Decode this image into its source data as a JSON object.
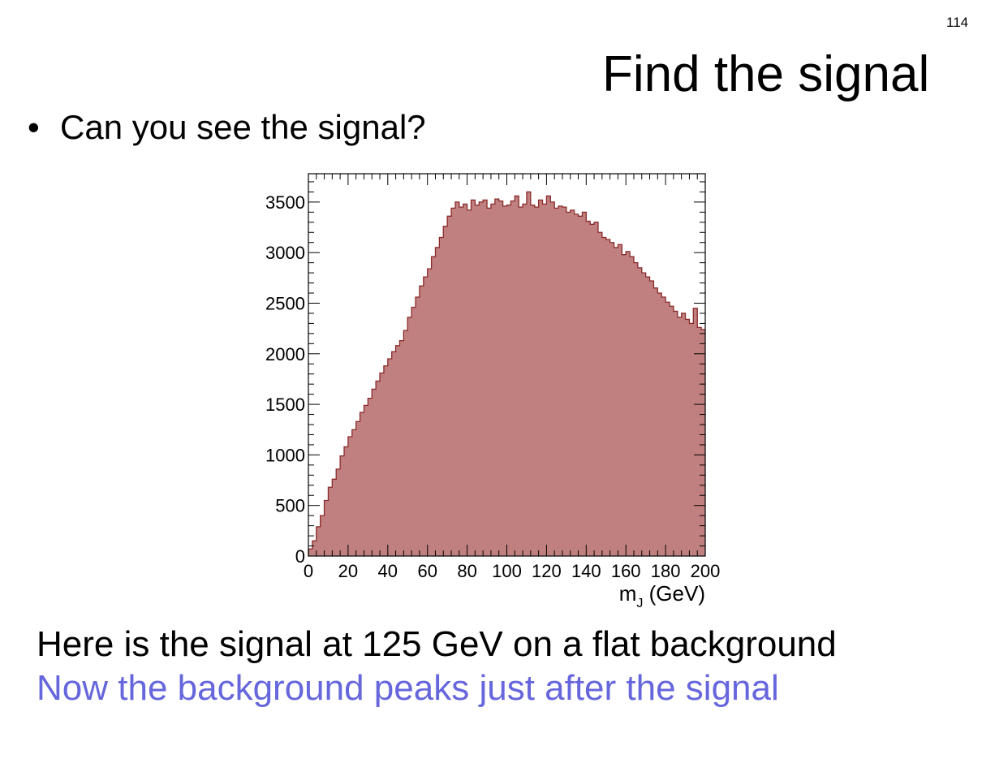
{
  "slide": {
    "number": "114",
    "title": "Find the signal",
    "bullet": "Can you see the signal?",
    "bullet_symbol": "•",
    "caption_1": "Here is the signal at 125 GeV on a flat background",
    "caption_2": "Now the background peaks just after the signal",
    "caption_2_color": "#6666dd"
  },
  "chart_data": {
    "type": "bar",
    "style": "histogram",
    "title": "",
    "xlabel": "m_J (GeV)",
    "xlabel_main": "m",
    "xlabel_sub": "J",
    "xlabel_rest": " (GeV)",
    "ylabel": "",
    "xlim": [
      0,
      200
    ],
    "ylim": [
      0,
      3780
    ],
    "x_ticks": [
      0,
      20,
      40,
      60,
      80,
      100,
      120,
      140,
      160,
      180,
      200
    ],
    "x_tick_labels": [
      "0",
      "20",
      "40",
      "60",
      "80",
      "100",
      "120",
      "140",
      "160",
      "180",
      "200"
    ],
    "y_ticks": [
      0,
      500,
      1000,
      1500,
      2000,
      2500,
      3000,
      3500
    ],
    "y_tick_labels": [
      "0",
      "500",
      "1000",
      "1500",
      "2000",
      "2500",
      "3000",
      "3500"
    ],
    "bin_width": 2,
    "fill_color": "#c08080",
    "line_color": "#8b2a2a",
    "grid": false,
    "series": [
      {
        "x": [
          1,
          3,
          5,
          7,
          9,
          11,
          13,
          15,
          17,
          19,
          21,
          23,
          25,
          27,
          29,
          31,
          33,
          35,
          37,
          39,
          41,
          43,
          45,
          47,
          49,
          51,
          53,
          55,
          57,
          59,
          61,
          63,
          65,
          67,
          69,
          71,
          73,
          75,
          77,
          79,
          81,
          83,
          85,
          87,
          89,
          91,
          93,
          95,
          97,
          99,
          101,
          103,
          105,
          107,
          109,
          111,
          113,
          115,
          117,
          119,
          121,
          123,
          125,
          127,
          129,
          131,
          133,
          135,
          137,
          139,
          141,
          143,
          145,
          147,
          149,
          151,
          153,
          155,
          157,
          159,
          161,
          163,
          165,
          167,
          169,
          171,
          173,
          175,
          177,
          179,
          181,
          183,
          185,
          187,
          189,
          191,
          193,
          195,
          197,
          199
        ],
        "values": [
          70,
          150,
          290,
          400,
          550,
          680,
          760,
          860,
          990,
          1080,
          1180,
          1250,
          1330,
          1420,
          1490,
          1560,
          1650,
          1730,
          1810,
          1880,
          1950,
          2020,
          2080,
          2130,
          2230,
          2360,
          2460,
          2560,
          2670,
          2760,
          2840,
          2960,
          3050,
          3150,
          3260,
          3360,
          3440,
          3500,
          3450,
          3480,
          3420,
          3520,
          3470,
          3500,
          3520,
          3440,
          3480,
          3530,
          3510,
          3460,
          3470,
          3510,
          3560,
          3450,
          3480,
          3600,
          3470,
          3450,
          3520,
          3480,
          3560,
          3500,
          3440,
          3460,
          3450,
          3400,
          3420,
          3380,
          3360,
          3400,
          3310,
          3280,
          3300,
          3200,
          3150,
          3130,
          3100,
          3050,
          3080,
          2980,
          3010,
          2960,
          2900,
          2850,
          2800,
          2760,
          2720,
          2650,
          2600,
          2560,
          2510,
          2470,
          2420,
          2360,
          2400,
          2340,
          2300,
          2450,
          2260,
          2240
        ]
      }
    ]
  }
}
